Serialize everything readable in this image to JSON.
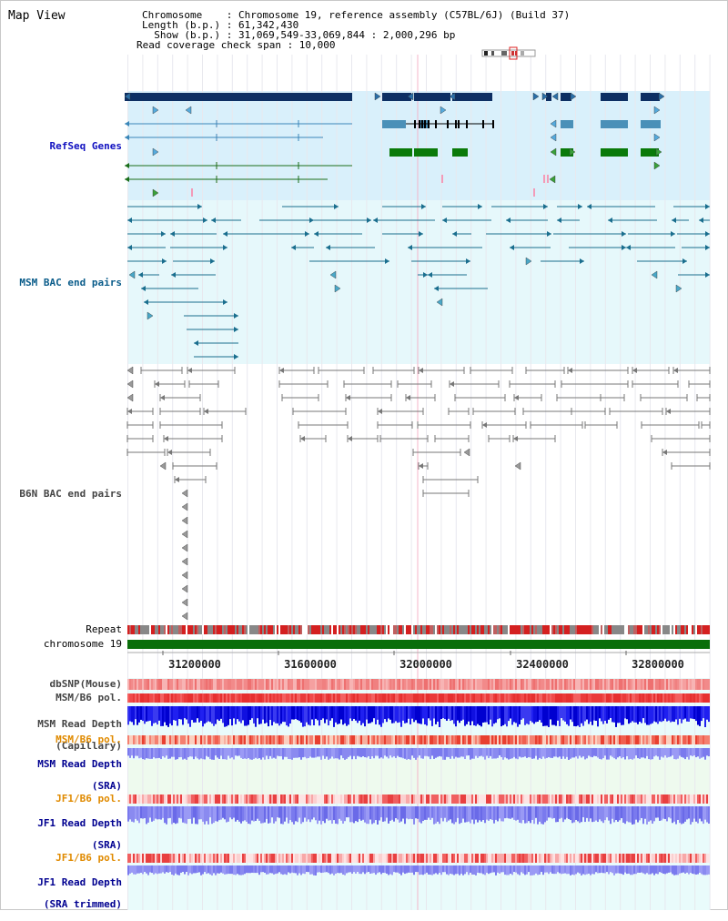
{
  "title": "Map View",
  "info": {
    "chromosome": "Chromosome    : Chromosome 19, reference assembly (C57BL/6J) (Build 37)",
    "length": "Length (b.p.) : 61,342,430",
    "show": "  Show (b.p.) : 31,069,549-33,069,844 : 2,000,296 bp",
    "coverage": "Read coverage check span : 10,000"
  },
  "tracks": {
    "refseq": "RefSeq Genes",
    "msm_bac": "MSM BAC end pairs",
    "b6n_bac": "B6N BAC end pairs",
    "repeat": "Repeat",
    "chromosome": "chromosome 19",
    "dbsnp": "dbSNP(Mouse)",
    "msm_b6_pol": "MSM/B6 pol.",
    "msm_depth_cap_1": "MSM Read Depth",
    "msm_depth_cap_2": "(Capillary)",
    "msm_b6_pol_sra": "MSM/B6 pol.",
    "msm_depth_sra_1": "MSM Read Depth",
    "msm_depth_sra_2": "(SRA)",
    "jf1_b6_pol": "JF1/B6 pol.",
    "jf1_depth_sra_1": "JF1 Read Depth",
    "jf1_depth_sra_2": "(SRA)",
    "jf1_b6_pol_trim": "JF1/B6 pol.",
    "jf1_depth_trim_1": "JF1 Read Depth",
    "jf1_depth_trim_2": "(SRA trimmed)"
  },
  "axis": {
    "ticks": [
      "31200000",
      "31600000",
      "32000000",
      "32400000",
      "32800000"
    ]
  },
  "colors": {
    "navy": "#0d2f63",
    "refseq_label": "#1010c0",
    "msm_label": "#0a5c8a",
    "b6n_label": "#444444",
    "orange_label": "#e08a00",
    "blue_label": "#000090",
    "gray_label": "#444444",
    "chrom_green": "#0a6e0a"
  }
}
